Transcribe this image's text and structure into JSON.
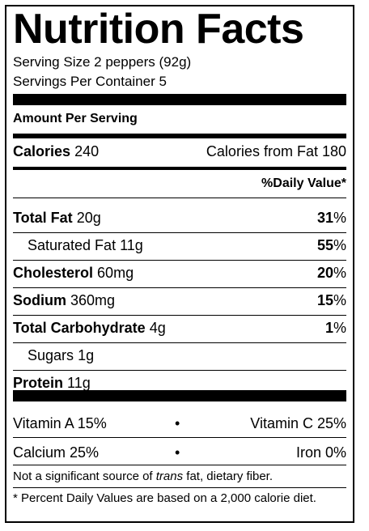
{
  "title": "Nutrition Facts",
  "serving_size": "Serving Size 2 peppers (92g)",
  "servings_per_container": "Servings Per Container 5",
  "amount_per_serving": "Amount Per Serving",
  "calories": {
    "label": "Calories",
    "value": "240"
  },
  "calories_from_fat": "Calories from Fat 180",
  "daily_value_header": "%Daily Value*",
  "nutrients": [
    {
      "name": "Total Fat",
      "amount": "20g",
      "percent": "31",
      "bold": true,
      "sub": false
    },
    {
      "name": "Saturated Fat",
      "amount": "11g",
      "percent": "55",
      "bold": false,
      "sub": true
    },
    {
      "name": "Cholesterol",
      "amount": "60mg",
      "percent": "20",
      "bold": true,
      "sub": false
    },
    {
      "name": "Sodium",
      "amount": "360mg",
      "percent": "15",
      "bold": true,
      "sub": false
    },
    {
      "name": "Total Carbohydrate",
      "amount": "4g",
      "percent": "1",
      "bold": true,
      "sub": false
    },
    {
      "name": "Sugars",
      "amount": "1g",
      "percent": "",
      "bold": false,
      "sub": true
    },
    {
      "name": "Protein",
      "amount": "11g",
      "percent": "",
      "bold": true,
      "sub": false
    }
  ],
  "percent_sign": "%",
  "vitamins": [
    {
      "left": "Vitamin A 15%",
      "right": "Vitamin C 25%"
    },
    {
      "left": "Calcium 25%",
      "right": "Iron 0%"
    }
  ],
  "bullet": "•",
  "footnote_prefix": "Not a significant source of ",
  "footnote_trans": "trans",
  "footnote_suffix": " fat, dietary fiber.",
  "disclaimer": "* Percent Daily Values are based on a 2,000 calorie diet."
}
